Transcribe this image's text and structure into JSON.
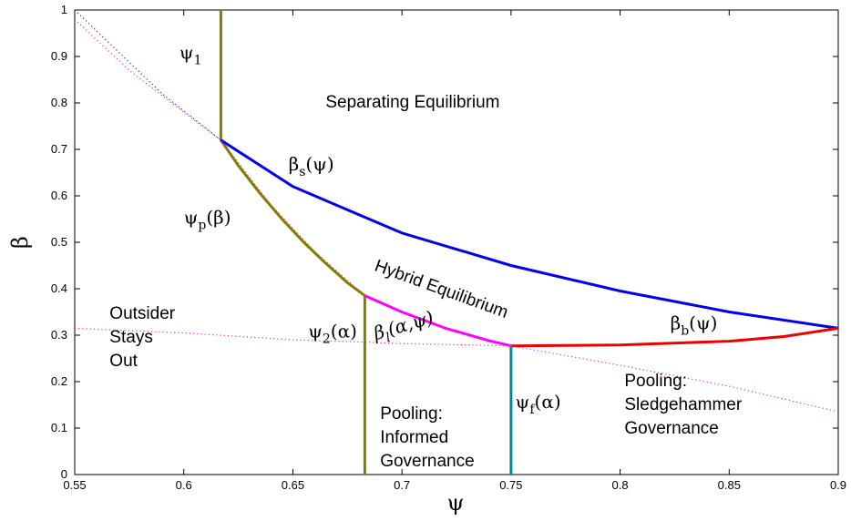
{
  "chart_data": {
    "type": "line",
    "xlabel": "ψ",
    "ylabel": "β",
    "xlim": [
      0.55,
      0.9
    ],
    "ylim": [
      0,
      1
    ],
    "x_ticks": [
      "0.55",
      "0.6",
      "0.65",
      "0.7",
      "0.75",
      "0.8",
      "0.85",
      "0.9"
    ],
    "y_ticks": [
      "0",
      "0.1",
      "0.2",
      "0.3",
      "0.4",
      "0.5",
      "0.6",
      "0.7",
      "0.8",
      "0.9",
      "1"
    ],
    "grid": false,
    "colors": {
      "olive": "#808000",
      "blue": "#0000ee",
      "magenta": "#ff00ff",
      "red": "#ee0000",
      "teal": "#008b8b",
      "dotted_blue": "#2222cc",
      "dotted_pink": "#dd3399"
    },
    "series": [
      {
        "name": "ψ_1",
        "style": "solid",
        "color": "olive",
        "x": [
          0.617,
          0.617
        ],
        "y": [
          1.0,
          0.72
        ]
      },
      {
        "name": "ψ_p(β)",
        "style": "solid",
        "color": "olive",
        "x": [
          0.617,
          0.625,
          0.635,
          0.645,
          0.655,
          0.665,
          0.675,
          0.683
        ],
        "y": [
          0.72,
          0.665,
          0.605,
          0.55,
          0.5,
          0.455,
          0.413,
          0.385
        ]
      },
      {
        "name": "ψ_2(α)",
        "style": "solid",
        "color": "olive",
        "x": [
          0.683,
          0.683
        ],
        "y": [
          0.385,
          0.0
        ]
      },
      {
        "name": "β_s(ψ)",
        "style": "solid",
        "color": "blue",
        "x": [
          0.617,
          0.65,
          0.7,
          0.75,
          0.8,
          0.85,
          0.9
        ],
        "y": [
          0.72,
          0.62,
          0.52,
          0.45,
          0.395,
          0.35,
          0.315
        ]
      },
      {
        "name": "β_l(α,ψ)",
        "style": "solid",
        "color": "magenta",
        "x": [
          0.683,
          0.7,
          0.72,
          0.74,
          0.75
        ],
        "y": [
          0.385,
          0.35,
          0.315,
          0.288,
          0.277
        ]
      },
      {
        "name": "β_b(ψ)",
        "style": "solid",
        "color": "red",
        "x": [
          0.75,
          0.8,
          0.85,
          0.875,
          0.9
        ],
        "y": [
          0.277,
          0.279,
          0.287,
          0.297,
          0.315
        ]
      },
      {
        "name": "ψ_f(α)",
        "style": "solid",
        "color": "teal",
        "x": [
          0.75,
          0.75
        ],
        "y": [
          0.277,
          0.0
        ]
      },
      {
        "name": "",
        "style": "dotted",
        "color": "dotted_blue",
        "x": [
          0.55,
          0.57,
          0.59,
          0.617
        ],
        "y": [
          1.0,
          0.91,
          0.82,
          0.72
        ]
      },
      {
        "name": "",
        "style": "dotted",
        "color": "dotted_pink",
        "x": [
          0.55,
          0.575,
          0.6,
          0.617,
          0.64,
          0.66,
          0.683
        ],
        "y": [
          0.98,
          0.87,
          0.78,
          0.72,
          0.58,
          0.48,
          0.385
        ]
      },
      {
        "name": "",
        "style": "dotted",
        "color": "dotted_pink",
        "x": [
          0.55,
          0.6,
          0.65,
          0.683,
          0.7,
          0.75
        ],
        "y": [
          0.315,
          0.305,
          0.29,
          0.285,
          0.282,
          0.277
        ]
      },
      {
        "name": "",
        "style": "dotted",
        "color": "dotted_pink",
        "x": [
          0.75,
          0.8,
          0.85,
          0.9
        ],
        "y": [
          0.277,
          0.235,
          0.19,
          0.135
        ]
      }
    ],
    "annotations": [
      {
        "key": "psi1",
        "x": 0.598,
        "y": 0.895,
        "base": "ψ",
        "sub": "1",
        "tail": ""
      },
      {
        "key": "sep",
        "x": 0.665,
        "y": 0.79,
        "text": "Separating Equilibrium"
      },
      {
        "key": "bs",
        "x": 0.648,
        "y": 0.655,
        "base": "β",
        "sub": "s",
        "tail": "(ψ)"
      },
      {
        "key": "psip",
        "x": 0.6,
        "y": 0.54,
        "base": "ψ",
        "sub": "p",
        "tail": "(β)"
      },
      {
        "key": "hybrid",
        "x": 0.687,
        "y": 0.44,
        "text": "Hybrid Equilibrium",
        "rotate": 20
      },
      {
        "key": "outsider",
        "x": 0.566,
        "y": 0.335,
        "lines": [
          "Outsider",
          "Stays",
          "Out"
        ]
      },
      {
        "key": "psi2",
        "x": 0.657,
        "y": 0.295,
        "base": "ψ",
        "sub": "2",
        "tail": "(α)"
      },
      {
        "key": "bl",
        "x": 0.688,
        "y": 0.29,
        "base": "β",
        "sub": "l",
        "tail": "(α,ψ)",
        "rotate": -16,
        "italic": true
      },
      {
        "key": "bb",
        "x": 0.823,
        "y": 0.313,
        "base": "β",
        "sub": "b",
        "tail": "(ψ)"
      },
      {
        "key": "pool_inf",
        "x": 0.69,
        "y": 0.12,
        "lines": [
          "Pooling:",
          "Informed",
          "Governance"
        ]
      },
      {
        "key": "psif",
        "x": 0.752,
        "y": 0.143,
        "base": "ψ",
        "sub": "f",
        "tail": "(α)"
      },
      {
        "key": "pool_sledge",
        "x": 0.802,
        "y": 0.19,
        "lines": [
          "Pooling:",
          "Sledgehammer",
          "Governance"
        ]
      }
    ]
  }
}
